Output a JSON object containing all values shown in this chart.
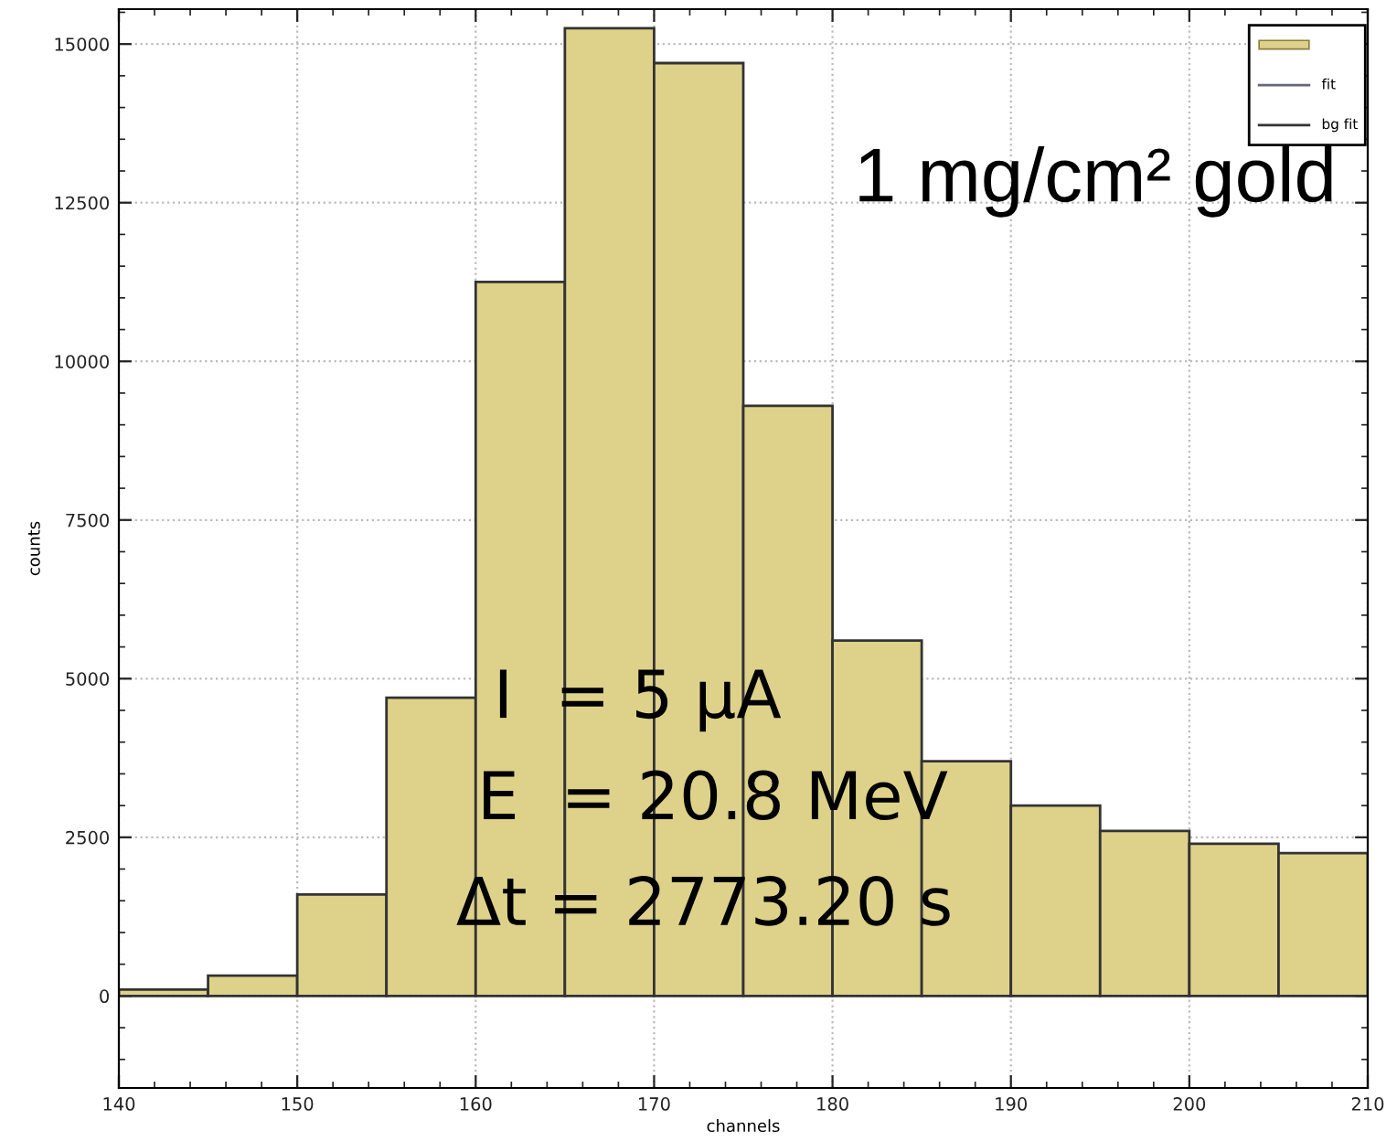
{
  "chart_data": {
    "type": "histogram",
    "xlabel": "channels",
    "ylabel": "counts",
    "bins": [
      140,
      145,
      150,
      155,
      160,
      165,
      170,
      175,
      180,
      185,
      190,
      195,
      200,
      205,
      210
    ],
    "values": [
      100,
      320,
      1600,
      4700,
      11250,
      15250,
      14700,
      9300,
      5600,
      3700,
      3000,
      2600,
      2400,
      2250
    ],
    "color": "#ded28b",
    "xlim": [
      140,
      210
    ],
    "xticks": [
      140,
      150,
      160,
      170,
      180,
      190,
      200,
      210
    ],
    "ylim": [
      -1450,
      15550
    ],
    "yticks": [
      0,
      2500,
      5000,
      7500,
      10000,
      12500,
      15000
    ],
    "grid": true,
    "annotations": [
      "1 mg/cm² gold",
      "I  = 5 µA",
      "E  = 20.8 MeV",
      "Δt = 2773.20 s",
      "fit",
      "bg fit"
    ]
  }
}
